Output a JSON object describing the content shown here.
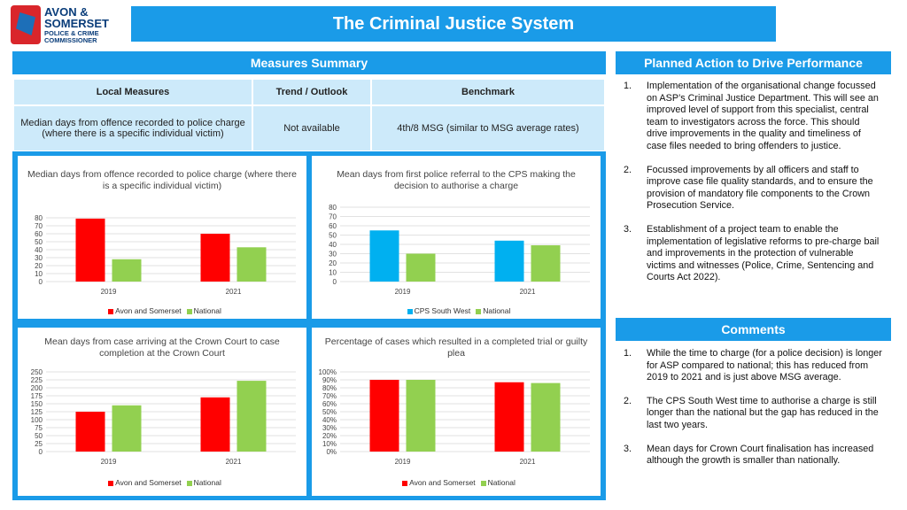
{
  "logo": {
    "line1": "AVON &",
    "line2": "SOMERSET",
    "line3": "POLICE & CRIME",
    "line4": "COMMISSIONER"
  },
  "title": "The Criminal Justice System",
  "measures": {
    "header": "Measures Summary",
    "columns": [
      "Local Measures",
      "Trend / Outlook",
      "Benchmark"
    ],
    "row": [
      "Median days from offence recorded to police charge (where there is a specific individual victim)",
      "Not available",
      "4th/8 MSG (similar to MSG average rates)"
    ]
  },
  "colors": {
    "accent": "#1a9be8",
    "red": "#ff0000",
    "green": "#92d050",
    "blue": "#00b0f0"
  },
  "chart_data": [
    {
      "type": "bar",
      "title": "Median days from offence recorded to police charge (where there is a specific individual victim)",
      "categories": [
        "2019",
        "2021"
      ],
      "series": [
        {
          "name": "Avon and Somerset",
          "values": [
            79,
            60
          ]
        },
        {
          "name": "National",
          "values": [
            28,
            43
          ]
        }
      ],
      "yticks": [
        "0",
        "10",
        "20",
        "30",
        "40",
        "50",
        "60",
        "70",
        "80"
      ],
      "ylim": [
        0,
        80
      ]
    },
    {
      "type": "bar",
      "title": "Mean days from first police referral to the CPS making the decision to authorise a charge",
      "categories": [
        "2019",
        "2021"
      ],
      "series": [
        {
          "name": "CPS South West",
          "values": [
            55,
            44
          ]
        },
        {
          "name": "National",
          "values": [
            30,
            39
          ]
        }
      ],
      "yticks": [
        "0",
        "10",
        "20",
        "30",
        "40",
        "50",
        "60",
        "70",
        "80"
      ],
      "ylim": [
        0,
        80
      ]
    },
    {
      "type": "bar",
      "title": "Mean days from case arriving at the Crown Court to case completion at the Crown Court",
      "categories": [
        "2019",
        "2021"
      ],
      "series": [
        {
          "name": "Avon and Somerset",
          "values": [
            125,
            170
          ]
        },
        {
          "name": "National",
          "values": [
            145,
            222
          ]
        }
      ],
      "yticks": [
        "0",
        "25",
        "50",
        "75",
        "100",
        "125",
        "150",
        "175",
        "200",
        "225",
        "250"
      ],
      "ylim": [
        0,
        250
      ]
    },
    {
      "type": "bar",
      "title": "Percentage of cases which resulted in a completed trial or guilty plea",
      "categories": [
        "2019",
        "2021"
      ],
      "series": [
        {
          "name": "Avon and Somerset",
          "values": [
            90,
            87
          ]
        },
        {
          "name": "National",
          "values": [
            90,
            86
          ]
        }
      ],
      "yticks": [
        "0%",
        "10%",
        "20%",
        "30%",
        "40%",
        "50%",
        "60%",
        "70%",
        "80%",
        "90%",
        "100%"
      ],
      "ylim": [
        0,
        100
      ]
    }
  ],
  "planned": {
    "header": "Planned Action to Drive Performance",
    "items": [
      {
        "num": "1.",
        "text": "Implementation of the organisational change focussed on ASP’s Criminal Justice Department. This will see an improved level of support from this specialist, central team to investigators across the force. This should drive improvements in the quality and timeliness of case files needed to bring offenders to justice."
      },
      {
        "num": "2.",
        "text": "Focussed improvements by all officers and staff to improve case file quality standards, and to ensure the provision of mandatory file components to the Crown Prosecution Service."
      },
      {
        "num": "3.",
        "text": "Establishment of a project team to enable the implementation of legislative reforms to pre-charge bail and improvements in the protection of vulnerable victims and witnesses (Police, Crime, Sentencing and Courts Act 2022)."
      }
    ]
  },
  "comments": {
    "header": "Comments",
    "items": [
      {
        "num": "1.",
        "text": "While the time to charge (for a police decision) is longer for ASP compared to national; this has reduced from 2019 to 2021 and is just above MSG average."
      },
      {
        "num": "2.",
        "text": "The CPS South West time to authorise a charge is still longer than the national but the gap has reduced in the last two years."
      },
      {
        "num": "3.",
        "text": "Mean days for Crown Court finalisation has increased although the growth is smaller than nationally."
      }
    ]
  }
}
